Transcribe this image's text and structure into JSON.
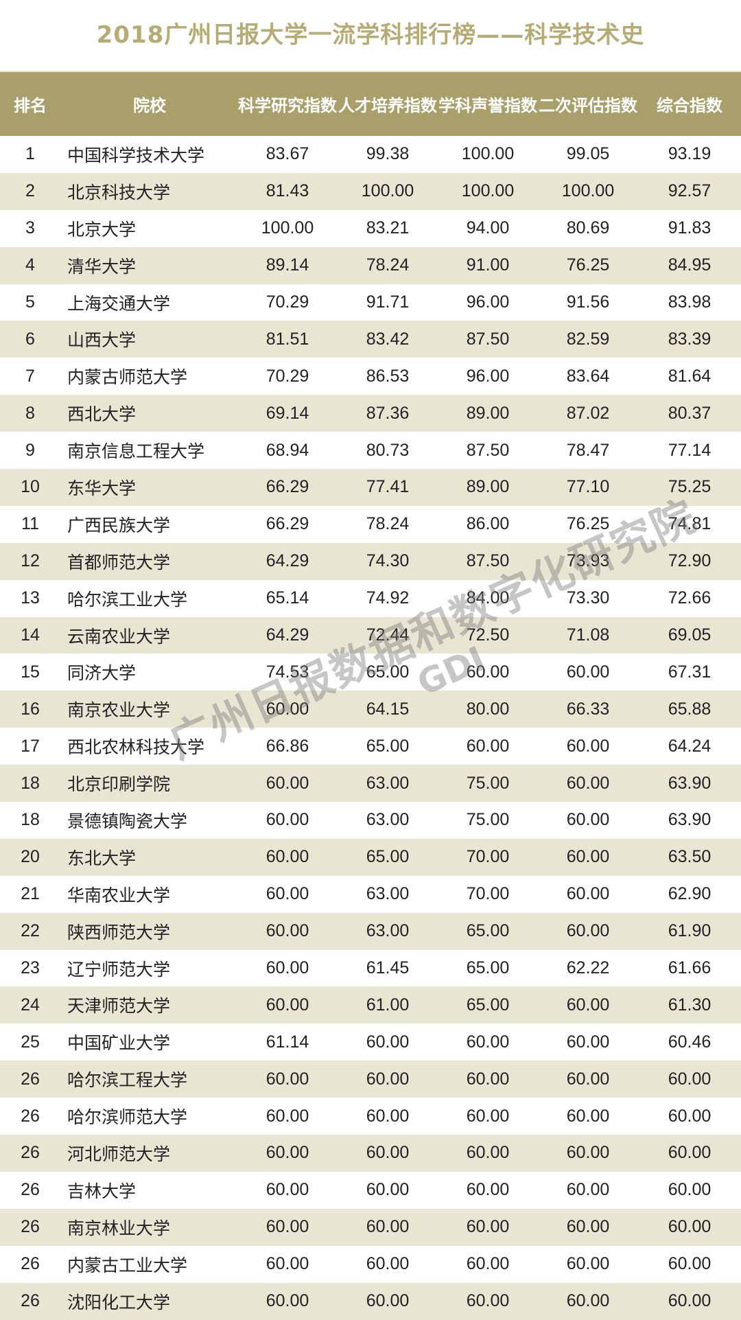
{
  "title": "2018广州日报大学一流学科排行榜——科学技术史",
  "headers": {
    "rank": "排名",
    "school": "院校",
    "research": "科学研究指数",
    "talent": "人才培养指数",
    "reputation": "学科声誉指数",
    "secondary": "二次评估指数",
    "overall": "综合指数"
  },
  "rows": [
    {
      "rank": "1",
      "school": "中国科学技术大学",
      "research": "83.67",
      "talent": "99.38",
      "reputation": "100.00",
      "secondary": "99.05",
      "overall": "93.19"
    },
    {
      "rank": "2",
      "school": "北京科技大学",
      "research": "81.43",
      "talent": "100.00",
      "reputation": "100.00",
      "secondary": "100.00",
      "overall": "92.57"
    },
    {
      "rank": "3",
      "school": "北京大学",
      "research": "100.00",
      "talent": "83.21",
      "reputation": "94.00",
      "secondary": "80.69",
      "overall": "91.83"
    },
    {
      "rank": "4",
      "school": "清华大学",
      "research": "89.14",
      "talent": "78.24",
      "reputation": "91.00",
      "secondary": "76.25",
      "overall": "84.95"
    },
    {
      "rank": "5",
      "school": "上海交通大学",
      "research": "70.29",
      "talent": "91.71",
      "reputation": "96.00",
      "secondary": "91.56",
      "overall": "83.98"
    },
    {
      "rank": "6",
      "school": "山西大学",
      "research": "81.51",
      "talent": "83.42",
      "reputation": "87.50",
      "secondary": "82.59",
      "overall": "83.39"
    },
    {
      "rank": "7",
      "school": "内蒙古师范大学",
      "research": "70.29",
      "talent": "86.53",
      "reputation": "96.00",
      "secondary": "83.64",
      "overall": "81.64"
    },
    {
      "rank": "8",
      "school": "西北大学",
      "research": "69.14",
      "talent": "87.36",
      "reputation": "89.00",
      "secondary": "87.02",
      "overall": "80.37"
    },
    {
      "rank": "9",
      "school": "南京信息工程大学",
      "research": "68.94",
      "talent": "80.73",
      "reputation": "87.50",
      "secondary": "78.47",
      "overall": "77.14"
    },
    {
      "rank": "10",
      "school": "东华大学",
      "research": "66.29",
      "talent": "77.41",
      "reputation": "89.00",
      "secondary": "77.10",
      "overall": "75.25"
    },
    {
      "rank": "11",
      "school": "广西民族大学",
      "research": "66.29",
      "talent": "78.24",
      "reputation": "86.00",
      "secondary": "76.25",
      "overall": "74.81"
    },
    {
      "rank": "12",
      "school": "首都师范大学",
      "research": "64.29",
      "talent": "74.30",
      "reputation": "87.50",
      "secondary": "73.93",
      "overall": "72.90"
    },
    {
      "rank": "13",
      "school": "哈尔滨工业大学",
      "research": "65.14",
      "talent": "74.92",
      "reputation": "84.00",
      "secondary": "73.30",
      "overall": "72.66"
    },
    {
      "rank": "14",
      "school": "云南农业大学",
      "research": "64.29",
      "talent": "72.44",
      "reputation": "72.50",
      "secondary": "71.08",
      "overall": "69.05"
    },
    {
      "rank": "15",
      "school": "同济大学",
      "research": "74.53",
      "talent": "65.00",
      "reputation": "60.00",
      "secondary": "60.00",
      "overall": "67.31"
    },
    {
      "rank": "16",
      "school": "南京农业大学",
      "research": "60.00",
      "talent": "64.15",
      "reputation": "80.00",
      "secondary": "66.33",
      "overall": "65.88"
    },
    {
      "rank": "17",
      "school": "西北农林科技大学",
      "research": "66.86",
      "talent": "65.00",
      "reputation": "60.00",
      "secondary": "60.00",
      "overall": "64.24"
    },
    {
      "rank": "18",
      "school": "北京印刷学院",
      "research": "60.00",
      "talent": "63.00",
      "reputation": "75.00",
      "secondary": "60.00",
      "overall": "63.90"
    },
    {
      "rank": "18",
      "school": "景德镇陶瓷大学",
      "research": "60.00",
      "talent": "63.00",
      "reputation": "75.00",
      "secondary": "60.00",
      "overall": "63.90"
    },
    {
      "rank": "20",
      "school": "东北大学",
      "research": "60.00",
      "talent": "65.00",
      "reputation": "70.00",
      "secondary": "60.00",
      "overall": "63.50"
    },
    {
      "rank": "21",
      "school": "华南农业大学",
      "research": "60.00",
      "talent": "63.00",
      "reputation": "70.00",
      "secondary": "60.00",
      "overall": "62.90"
    },
    {
      "rank": "22",
      "school": "陕西师范大学",
      "research": "60.00",
      "talent": "63.00",
      "reputation": "65.00",
      "secondary": "60.00",
      "overall": "61.90"
    },
    {
      "rank": "23",
      "school": "辽宁师范大学",
      "research": "60.00",
      "talent": "61.45",
      "reputation": "65.00",
      "secondary": "62.22",
      "overall": "61.66"
    },
    {
      "rank": "24",
      "school": "天津师范大学",
      "research": "60.00",
      "talent": "61.00",
      "reputation": "65.00",
      "secondary": "60.00",
      "overall": "61.30"
    },
    {
      "rank": "25",
      "school": "中国矿业大学",
      "research": "61.14",
      "talent": "60.00",
      "reputation": "60.00",
      "secondary": "60.00",
      "overall": "60.46"
    },
    {
      "rank": "26",
      "school": "哈尔滨工程大学",
      "research": "60.00",
      "talent": "60.00",
      "reputation": "60.00",
      "secondary": "60.00",
      "overall": "60.00"
    },
    {
      "rank": "26",
      "school": "哈尔滨师范大学",
      "research": "60.00",
      "talent": "60.00",
      "reputation": "60.00",
      "secondary": "60.00",
      "overall": "60.00"
    },
    {
      "rank": "26",
      "school": "河北师范大学",
      "research": "60.00",
      "talent": "60.00",
      "reputation": "60.00",
      "secondary": "60.00",
      "overall": "60.00"
    },
    {
      "rank": "26",
      "school": "吉林大学",
      "research": "60.00",
      "talent": "60.00",
      "reputation": "60.00",
      "secondary": "60.00",
      "overall": "60.00"
    },
    {
      "rank": "26",
      "school": "南京林业大学",
      "research": "60.00",
      "talent": "60.00",
      "reputation": "60.00",
      "secondary": "60.00",
      "overall": "60.00"
    },
    {
      "rank": "26",
      "school": "内蒙古工业大学",
      "research": "60.00",
      "talent": "60.00",
      "reputation": "60.00",
      "secondary": "60.00",
      "overall": "60.00"
    },
    {
      "rank": "26",
      "school": "沈阳化工大学",
      "research": "60.00",
      "talent": "60.00",
      "reputation": "60.00",
      "secondary": "60.00",
      "overall": "60.00"
    }
  ],
  "watermark": {
    "line1": "广州日报数据和数字化研究院",
    "line2": "GDI"
  }
}
